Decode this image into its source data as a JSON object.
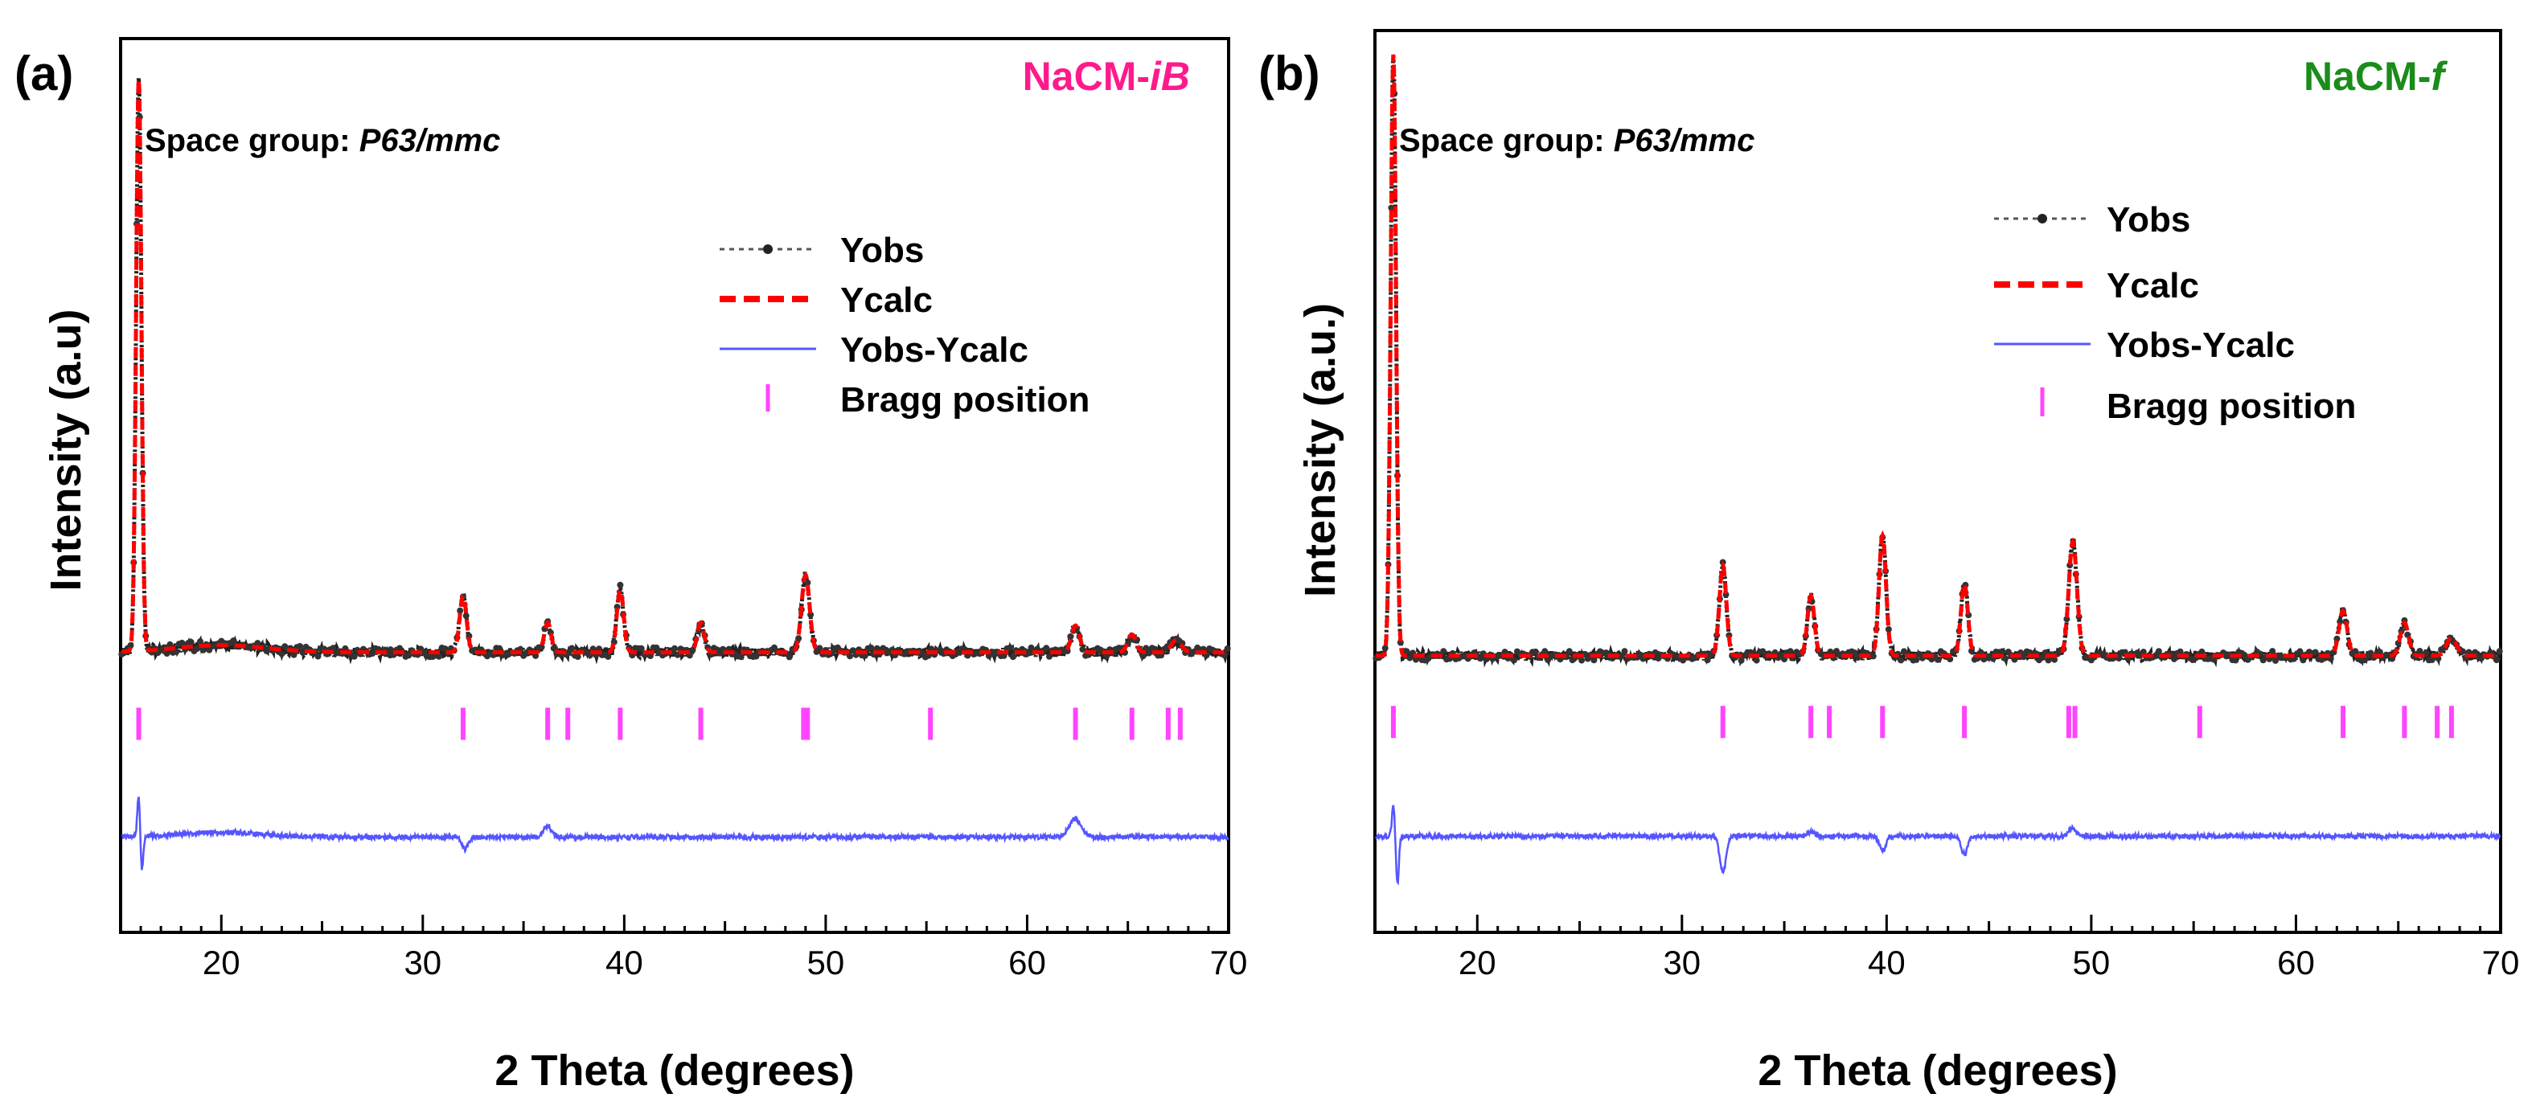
{
  "chart_data": [
    {
      "type": "line",
      "panel_label": "(a)",
      "sample_label": "NaCM-",
      "sample_label_italic": "iB",
      "sample_color": "#ff1a8c",
      "space_group_label": "Space group: ",
      "space_group_value": "P63/mmc",
      "xlabel": "2 Theta (degrees)",
      "ylabel": "Intensity (a.u)",
      "xlim": [
        15,
        70
      ],
      "xticks": [
        20,
        30,
        40,
        50,
        60,
        70
      ],
      "ylim": [
        -0.45,
        1.05
      ],
      "legend": {
        "position": "top-right",
        "entries": [
          {
            "name": "Yobs",
            "style": "dotted-line-markers",
            "color": "#333333"
          },
          {
            "name": "Ycalc",
            "style": "dashed",
            "color": "#ff0000"
          },
          {
            "name": "Yobs-Ycalc",
            "style": "solid",
            "color": "#5555ff"
          },
          {
            "name": "Bragg position",
            "style": "tick",
            "color": "#ff44ff"
          }
        ]
      },
      "background": 0.02,
      "peaks": [
        {
          "pos": 15.9,
          "height": 0.96,
          "width": 0.13
        },
        {
          "pos": 20.0,
          "height": 0.012,
          "width": 2.2
        },
        {
          "pos": 32.0,
          "height": 0.095,
          "width": 0.17
        },
        {
          "pos": 36.2,
          "height": 0.05,
          "width": 0.17
        },
        {
          "pos": 39.8,
          "height": 0.105,
          "width": 0.17
        },
        {
          "pos": 43.8,
          "height": 0.05,
          "width": 0.17
        },
        {
          "pos": 49.0,
          "height": 0.13,
          "width": 0.2
        },
        {
          "pos": 62.4,
          "height": 0.045,
          "width": 0.2
        },
        {
          "pos": 65.2,
          "height": 0.03,
          "width": 0.2
        },
        {
          "pos": 67.4,
          "height": 0.02,
          "width": 0.25
        }
      ],
      "bragg_positions": [
        15.9,
        32.0,
        36.2,
        37.2,
        39.8,
        43.8,
        48.9,
        49.1,
        55.2,
        62.4,
        65.2,
        67.0,
        67.6
      ],
      "bragg_level": -0.1,
      "diff_level": -0.29,
      "diff_features": [
        {
          "pos": 15.9,
          "amp": 0.07,
          "width": 0.07
        },
        {
          "pos": 16.05,
          "amp": -0.06,
          "width": 0.07
        },
        {
          "pos": 20.0,
          "amp": 0.008,
          "width": 2.0
        },
        {
          "pos": 32.1,
          "amp": -0.02,
          "width": 0.15
        },
        {
          "pos": 36.2,
          "amp": 0.018,
          "width": 0.2
        },
        {
          "pos": 62.4,
          "amp": 0.03,
          "width": 0.3
        }
      ]
    },
    {
      "type": "line",
      "panel_label": "(b)",
      "sample_label": "NaCM-",
      "sample_label_italic": "f",
      "sample_color": "#1a8c1a",
      "space_group_label": "Space group: ",
      "space_group_value": "P63/mmc",
      "xlabel": "2 Theta (degrees)",
      "ylabel": "Intensity (a.u.)",
      "xlim": [
        15,
        70
      ],
      "xticks": [
        20,
        30,
        40,
        50,
        60,
        70
      ],
      "ylim": [
        -0.45,
        1.05
      ],
      "legend": {
        "position": "top-right",
        "entries": [
          {
            "name": "Yobs",
            "style": "dotted-line-markers",
            "color": "#333333"
          },
          {
            "name": "Ycalc",
            "style": "dashed",
            "color": "#ff0000"
          },
          {
            "name": "Yobs-Ycalc",
            "style": "solid",
            "color": "#5555ff"
          },
          {
            "name": "Bragg position",
            "style": "tick",
            "color": "#ff44ff"
          }
        ]
      },
      "background": 0.01,
      "peaks": [
        {
          "pos": 15.9,
          "height": 1.0,
          "width": 0.13
        },
        {
          "pos": 32.0,
          "height": 0.15,
          "width": 0.17
        },
        {
          "pos": 36.3,
          "height": 0.1,
          "width": 0.17
        },
        {
          "pos": 39.8,
          "height": 0.2,
          "width": 0.17
        },
        {
          "pos": 43.8,
          "height": 0.12,
          "width": 0.17
        },
        {
          "pos": 49.1,
          "height": 0.19,
          "width": 0.2
        },
        {
          "pos": 62.3,
          "height": 0.075,
          "width": 0.2
        },
        {
          "pos": 65.3,
          "height": 0.055,
          "width": 0.2
        },
        {
          "pos": 67.6,
          "height": 0.03,
          "width": 0.25
        }
      ],
      "bragg_positions": [
        15.9,
        32.0,
        36.3,
        37.2,
        39.8,
        43.8,
        48.9,
        49.2,
        55.3,
        62.3,
        65.3,
        66.9,
        67.6
      ],
      "bragg_level": -0.1,
      "diff_level": -0.29,
      "diff_features": [
        {
          "pos": 15.9,
          "amp": 0.05,
          "width": 0.07
        },
        {
          "pos": 16.1,
          "amp": -0.08,
          "width": 0.07
        },
        {
          "pos": 32.0,
          "amp": -0.06,
          "width": 0.15
        },
        {
          "pos": 36.3,
          "amp": 0.008,
          "width": 0.15
        },
        {
          "pos": 39.8,
          "amp": -0.025,
          "width": 0.15
        },
        {
          "pos": 43.8,
          "amp": -0.03,
          "width": 0.15
        },
        {
          "pos": 49.1,
          "amp": 0.012,
          "width": 0.2
        }
      ]
    }
  ]
}
